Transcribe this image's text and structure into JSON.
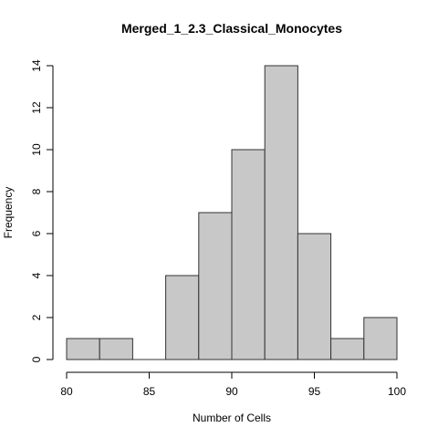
{
  "chart_data": {
    "type": "bar",
    "title": "Merged_1_2.3_Classical_Monocytes",
    "xlabel": "Number of Cells",
    "ylabel": "Frequency",
    "bin_edges": [
      80,
      82,
      84,
      86,
      88,
      90,
      92,
      94,
      96,
      98,
      100
    ],
    "values": [
      1,
      1,
      0,
      4,
      7,
      10,
      14,
      6,
      1,
      2
    ],
    "xlim": [
      80,
      100
    ],
    "ylim": [
      0,
      14
    ],
    "x_ticks": [
      80,
      85,
      90,
      95,
      100
    ],
    "y_ticks": [
      0,
      2,
      4,
      6,
      8,
      10,
      12,
      14
    ],
    "grid": false,
    "legend": "none",
    "colors": {
      "bar_fill": "#c8c8c8",
      "bar_stroke": "#333333"
    }
  }
}
